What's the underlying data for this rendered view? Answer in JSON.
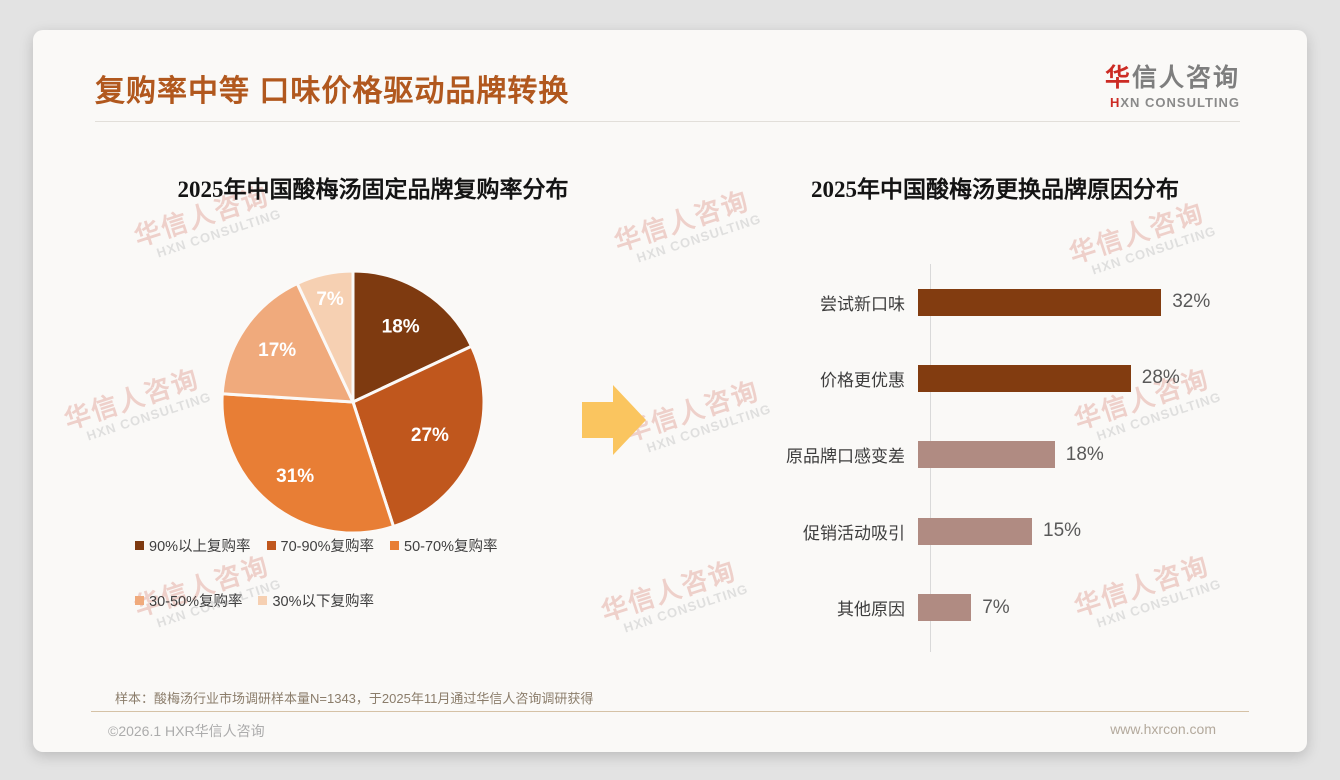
{
  "header": {
    "title": "复购率中等 口味价格驱动品牌转换",
    "logo": {
      "cn_first": "华",
      "cn_rest": "信人咨询",
      "en_first": "H",
      "en_rest": "XN CONSULTING"
    }
  },
  "watermark": {
    "line1": "华信人咨询",
    "line2": "HXN CONSULTING"
  },
  "chart_data": [
    {
      "type": "pie",
      "title": "2025年中国酸梅汤固定品牌复购率分布",
      "categories": [
        "90%以上复购率",
        "70-90%复购率",
        "50-70%复购率",
        "30-50%复购率",
        "30%以下复购率"
      ],
      "values": [
        18,
        27,
        31,
        17,
        7
      ],
      "data_labels": [
        "18%",
        "27%",
        "31%",
        "17%",
        "7%"
      ],
      "colors": [
        "#7e3a10",
        "#c0571d",
        "#e87e35",
        "#f0aa7c",
        "#f6d0b2"
      ],
      "start_angle": "12-oclock clockwise",
      "label_color": "#ffffff",
      "legend_position": "bottom"
    },
    {
      "type": "bar",
      "title": "2025年中国酸梅汤更换品牌原因分布",
      "orientation": "horizontal",
      "categories": [
        "尝试新口味",
        "价格更优惠",
        "原品牌口感变差",
        "促销活动吸引",
        "其他原因"
      ],
      "values": [
        32,
        28,
        18,
        15,
        7
      ],
      "data_labels": [
        "32%",
        "28%",
        "18%",
        "15%",
        "7%"
      ],
      "bar_colors": [
        "#823c10",
        "#823c10",
        "#b08b82",
        "#b08b82",
        "#b08b82"
      ],
      "xlim": [
        0,
        35
      ],
      "grid": false
    }
  ],
  "arrow_color": "#fac55f",
  "footer": {
    "note": "样本：酸梅汤行业市场调研样本量N=1343，于2025年11月通过华信人咨询调研获得",
    "copyright": "©2026.1 HXR华信人咨询",
    "website": "www.hxrcon.com"
  }
}
